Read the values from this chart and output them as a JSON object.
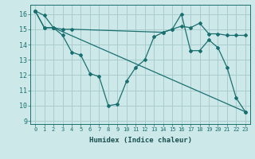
{
  "xlabel": "Humidex (Indice chaleur)",
  "background_color": "#cce8e8",
  "grid_color": "#aacccc",
  "line_color": "#1a7070",
  "xlim": [
    -0.5,
    23.5
  ],
  "ylim": [
    8.8,
    16.6
  ],
  "yticks": [
    9,
    10,
    11,
    12,
    13,
    14,
    15,
    16
  ],
  "xticks": [
    0,
    1,
    2,
    3,
    4,
    5,
    6,
    7,
    8,
    9,
    10,
    11,
    12,
    13,
    14,
    15,
    16,
    17,
    18,
    19,
    20,
    21,
    22,
    23
  ],
  "lines": [
    {
      "x": [
        0,
        1,
        2,
        3,
        4,
        5,
        6,
        7,
        8,
        9,
        10,
        11,
        12,
        13,
        14,
        15,
        16,
        17,
        18,
        19,
        20,
        21,
        22,
        23
      ],
      "y": [
        16.2,
        15.9,
        15.1,
        14.6,
        13.5,
        13.3,
        12.1,
        11.9,
        10.0,
        10.1,
        11.6,
        12.5,
        13.0,
        14.5,
        14.8,
        15.0,
        16.0,
        13.6,
        13.6,
        14.3,
        13.8,
        12.5,
        10.5,
        9.6
      ]
    },
    {
      "x": [
        0,
        1,
        2,
        3,
        4,
        14,
        15,
        16,
        17,
        18,
        19,
        20,
        21,
        22,
        23
      ],
      "y": [
        16.2,
        15.1,
        15.1,
        15.0,
        15.0,
        14.8,
        15.0,
        15.2,
        15.1,
        15.4,
        14.7,
        14.7,
        14.6,
        14.6,
        14.6
      ]
    },
    {
      "x": [
        0,
        1,
        2,
        23
      ],
      "y": [
        16.2,
        15.1,
        15.1,
        9.6
      ]
    }
  ]
}
